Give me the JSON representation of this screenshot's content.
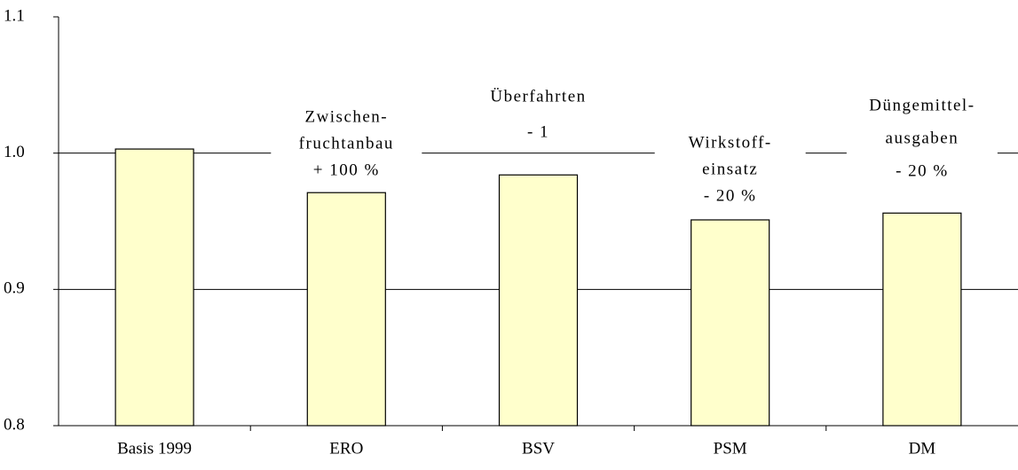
{
  "chart_data": {
    "type": "bar",
    "categories": [
      "Basis 1999",
      "ERO",
      "BSV",
      "PSM",
      "DM"
    ],
    "values": [
      1.003,
      0.971,
      0.984,
      0.951,
      0.956
    ],
    "color": "#ffffcc",
    "ylim": [
      0.8,
      1.1
    ],
    "yticks": [
      0.8,
      0.9,
      {
        "value": 1.0,
        "label": "1.0"
      },
      1.1
    ],
    "grid": true,
    "annotations": [
      null,
      [
        "Zwischen-",
        "fruchtanbau",
        "+ 100 %"
      ],
      [
        "Überfahrten",
        "- 1"
      ],
      [
        "Wirkstoff-",
        "einsatz",
        "- 20 %"
      ],
      [
        "Düngemittel-",
        "ausgaben",
        "- 20 %"
      ]
    ]
  }
}
